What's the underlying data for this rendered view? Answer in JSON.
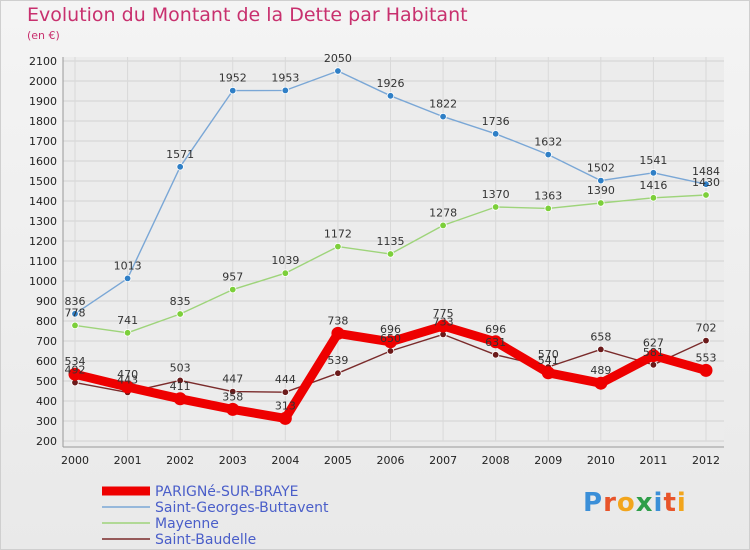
{
  "chart_data": {
    "type": "line",
    "title": "Evolution du Montant de la Dette par Habitant",
    "subtitle": "(en €)",
    "xlabel": "",
    "ylabel": "",
    "x": [
      2000,
      2001,
      2002,
      2003,
      2004,
      2005,
      2006,
      2007,
      2008,
      2009,
      2010,
      2011,
      2012
    ],
    "ylim": [
      200,
      2100
    ],
    "yticks": [
      200,
      300,
      400,
      500,
      600,
      700,
      800,
      900,
      1000,
      1100,
      1200,
      1300,
      1400,
      1500,
      1600,
      1700,
      1800,
      1900,
      2000,
      2100
    ],
    "grid": true,
    "legend_position": "bottom-left",
    "series": [
      {
        "name": "PARIGNé-SUR-BRAYE",
        "color": "#ee0000",
        "values": [
          534,
          470,
          411,
          358,
          313,
          738,
          696,
          775,
          696,
          541,
          489,
          627,
          553
        ]
      },
      {
        "name": "Saint-Georges-Buttavent",
        "color": "#7aa7d6",
        "marker_color": "#2f7fc6",
        "values": [
          836,
          1013,
          1571,
          1952,
          1953,
          2050,
          1926,
          1822,
          1736,
          1632,
          1502,
          1541,
          1484
        ]
      },
      {
        "name": "Mayenne",
        "color": "#9ed47a",
        "marker_color": "#7ccf3a",
        "values": [
          778,
          741,
          835,
          957,
          1039,
          1172,
          1135,
          1278,
          1370,
          1363,
          1390,
          1416,
          1430
        ]
      },
      {
        "name": "Saint-Baudelle",
        "color": "#7a2b2b",
        "marker_color": "#6b1a1a",
        "values": [
          492,
          443,
          503,
          447,
          444,
          539,
          650,
          733,
          631,
          570,
          658,
          581,
          702
        ]
      }
    ]
  },
  "logo": {
    "letters": [
      "P",
      "r",
      "o",
      "x",
      "i",
      "t",
      "i"
    ],
    "colors": [
      "#3b8fd8",
      "#e8542a",
      "#f2a51c",
      "#2e9e49",
      "#3b8fd8",
      "#e8542a",
      "#f2a51c"
    ]
  }
}
